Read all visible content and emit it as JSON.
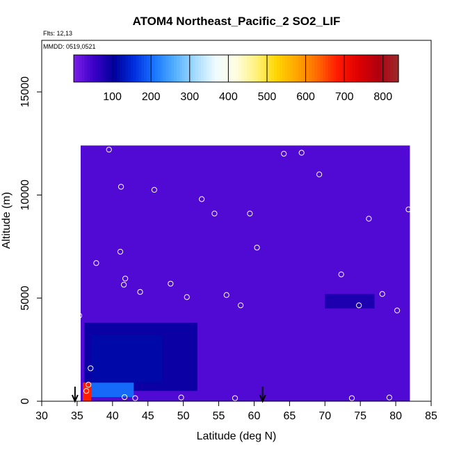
{
  "chart_data": {
    "type": "heatmap",
    "title": "ATOM4 Northeast_Pacific_2 SO2_LIF",
    "annotations": {
      "flights": "Flts: 12,13",
      "dates": "MMDD: 0519,0521"
    },
    "xlabel": "Latitude (deg N)",
    "ylabel": "Altitude (m)",
    "xlim": [
      30,
      85
    ],
    "ylim": [
      0,
      17500
    ],
    "xticks": [
      30,
      35,
      40,
      45,
      50,
      55,
      60,
      65,
      70,
      75,
      80,
      85
    ],
    "yticks": [
      0,
      5000,
      10000,
      15000
    ],
    "colorbar": {
      "min": 0,
      "max": 840,
      "ticks": [
        100,
        200,
        300,
        400,
        500,
        600,
        700,
        800
      ],
      "colors": [
        "#7b1fe8",
        "#3a00c8",
        "#00009a",
        "#0030e0",
        "#1a78ff",
        "#55b0ff",
        "#a8dcff",
        "#eefbff",
        "#fffde0",
        "#fff27a",
        "#ffd400",
        "#ffa500",
        "#ff6a00",
        "#ff1a00",
        "#e00000",
        "#b00010",
        "#9b2a2a"
      ]
    },
    "grid": false,
    "field_regions": [
      {
        "lat": [
          35.5,
          82
        ],
        "alt": [
          0,
          12400
        ],
        "value": 35
      },
      {
        "lat": [
          36,
          52
        ],
        "alt": [
          500,
          3800
        ],
        "value": 95
      },
      {
        "lat": [
          37,
          47
        ],
        "alt": [
          900,
          3200
        ],
        "value": 115
      },
      {
        "lat": [
          70,
          77
        ],
        "alt": [
          4500,
          5200
        ],
        "value": 80
      },
      {
        "lat": [
          36,
          43
        ],
        "alt": [
          200,
          900
        ],
        "value": 200
      },
      {
        "lat": [
          35.8,
          37
        ],
        "alt": [
          0,
          900
        ],
        "value": 680
      }
    ],
    "markers_lat": [
      34.7,
      61.2
    ],
    "flight_points": [
      {
        "lat": 39.5,
        "alt": 12200
      },
      {
        "lat": 64.2,
        "alt": 12000
      },
      {
        "lat": 66.7,
        "alt": 12050
      },
      {
        "lat": 69.2,
        "alt": 11000
      },
      {
        "lat": 41.2,
        "alt": 10400
      },
      {
        "lat": 45.9,
        "alt": 10250
      },
      {
        "lat": 52.6,
        "alt": 9800
      },
      {
        "lat": 54.4,
        "alt": 9100
      },
      {
        "lat": 59.4,
        "alt": 9100
      },
      {
        "lat": 76.2,
        "alt": 8850
      },
      {
        "lat": 81.8,
        "alt": 9300
      },
      {
        "lat": 41.1,
        "alt": 7250
      },
      {
        "lat": 60.4,
        "alt": 7450
      },
      {
        "lat": 37.7,
        "alt": 6700
      },
      {
        "lat": 72.3,
        "alt": 6150
      },
      {
        "lat": 41.8,
        "alt": 5950
      },
      {
        "lat": 41.6,
        "alt": 5650
      },
      {
        "lat": 48.2,
        "alt": 5700
      },
      {
        "lat": 43.9,
        "alt": 5300
      },
      {
        "lat": 50.5,
        "alt": 5050
      },
      {
        "lat": 56.1,
        "alt": 5150
      },
      {
        "lat": 58.1,
        "alt": 4650
      },
      {
        "lat": 74.8,
        "alt": 4650
      },
      {
        "lat": 78.1,
        "alt": 5200
      },
      {
        "lat": 80.2,
        "alt": 4400
      },
      {
        "lat": 35.3,
        "alt": 4150
      },
      {
        "lat": 36.9,
        "alt": 1600
      },
      {
        "lat": 36.6,
        "alt": 800
      },
      {
        "lat": 36.3,
        "alt": 500
      },
      {
        "lat": 41.7,
        "alt": 200
      },
      {
        "lat": 43.2,
        "alt": 150
      },
      {
        "lat": 49.7,
        "alt": 180
      },
      {
        "lat": 57.3,
        "alt": 150
      },
      {
        "lat": 73.8,
        "alt": 150
      },
      {
        "lat": 79.1,
        "alt": 180
      }
    ]
  }
}
